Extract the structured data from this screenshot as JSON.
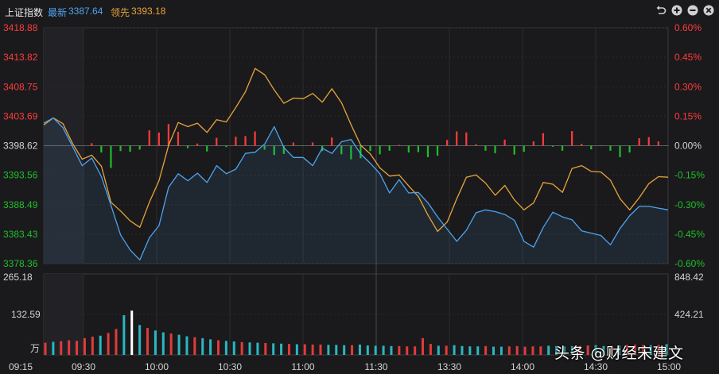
{
  "header": {
    "index_name": "上证指数",
    "latest_label": "最新",
    "latest_value": "3387.64",
    "leading_label": "领先",
    "leading_value": "3393.18"
  },
  "icons": [
    "undo-icon",
    "zoom-in-icon",
    "zoom-out-icon",
    "close-icon"
  ],
  "colors": {
    "up": "#ff3b3b",
    "down": "#1fbf2a",
    "price_line": "#4ea3f0",
    "leading_line": "#e8a33c",
    "axis_text": "#d4d4d4",
    "background": "#1a1a1c",
    "volume_up": "#e23b3b",
    "volume_down": "#2bb7c2"
  },
  "watermark": "头条 @财经宋建文",
  "chart_data": [
    {
      "type": "line",
      "name": "price-panel",
      "y_left_ticks": [
        "3418.88",
        "3413.82",
        "3408.75",
        "3403.69",
        "3398.62",
        "3393.56",
        "3388.49",
        "3383.43",
        "3378.36"
      ],
      "y_right_ticks": [
        "0.60%",
        "0.45%",
        "0.30%",
        "0.15%",
        "0.00%",
        "-0.15%",
        "-0.30%",
        "-0.45%",
        "-0.60%"
      ],
      "ylim": [
        3378.36,
        3418.88
      ],
      "prev_close": 3398.62,
      "x_ticks": [
        "09:15",
        "09:30",
        "10:00",
        "10:30",
        "11:00",
        "11:30",
        "13:30",
        "14:00",
        "14:30",
        "15:00"
      ],
      "series": [
        {
          "name": "最新",
          "values": [
            3402.5,
            3403.4,
            3401.7,
            3398.5,
            3395.2,
            3396.5,
            3393.3,
            3388.4,
            3383.3,
            3380.7,
            3379.0,
            3382.8,
            3384.9,
            3391.5,
            3393.8,
            3392.6,
            3393.9,
            3392.3,
            3395.2,
            3393.8,
            3394.6,
            3397.3,
            3397.5,
            3398.9,
            3401.9,
            3398.3,
            3396.6,
            3396.6,
            3395.2,
            3398.2,
            3397.3,
            3399.3,
            3399.7,
            3397.2,
            3395.6,
            3393.8,
            3390.5,
            3392.8,
            3390.5,
            3390.6,
            3388.8,
            3386.4,
            3384.3,
            3382.2,
            3384.1,
            3387.1,
            3387.6,
            3387.3,
            3386.8,
            3385.8,
            3382.2,
            3381.2,
            3384.6,
            3387.2,
            3386.4,
            3385.9,
            3384.0,
            3383.6,
            3383.2,
            3381.6,
            3384.4,
            3386.6,
            3388.2,
            3388.2,
            3387.9,
            3387.6
          ]
        },
        {
          "name": "领先",
          "values": [
            3402.2,
            3403.4,
            3402.4,
            3399.0,
            3396.3,
            3397.0,
            3395.1,
            3388.9,
            3387.4,
            3385.7,
            3384.6,
            3388.9,
            3392.6,
            3398.7,
            3402.6,
            3401.9,
            3402.5,
            3400.9,
            3403.1,
            3402.7,
            3405.2,
            3407.9,
            3411.9,
            3410.8,
            3408.2,
            3405.9,
            3406.8,
            3406.7,
            3407.6,
            3406.1,
            3408.4,
            3406.0,
            3402.2,
            3398.7,
            3397.2,
            3394.8,
            3393.4,
            3393.6,
            3391.7,
            3389.9,
            3386.7,
            3383.9,
            3385.5,
            3389.5,
            3393.2,
            3393.6,
            3392.2,
            3390.1,
            3391.8,
            3389.3,
            3387.6,
            3388.8,
            3392.3,
            3392.0,
            3390.6,
            3394.7,
            3395.2,
            3394.2,
            3394.1,
            3392.7,
            3389.5,
            3387.6,
            3389.7,
            3392.1,
            3393.3,
            3393.2
          ]
        }
      ]
    },
    {
      "type": "bar",
      "name": "volume-panel",
      "y_left_ticks": [
        "265.18",
        "132.59",
        "万"
      ],
      "y_right_ticks": [
        "848.42",
        "424.21"
      ],
      "ylim": [
        0,
        265.18
      ],
      "values": [
        40,
        43,
        45,
        48,
        46,
        55,
        60,
        63,
        72,
        85,
        130,
        145,
        98,
        88,
        80,
        74,
        70,
        66,
        61,
        58,
        55,
        51,
        48,
        46,
        44,
        42,
        41,
        40,
        39,
        38,
        37,
        36,
        35,
        35,
        34,
        34,
        33,
        33,
        32,
        32,
        34,
        31,
        30,
        30,
        29,
        29,
        28,
        28,
        55,
        36,
        30,
        30,
        32,
        29,
        28,
        28,
        29,
        27,
        27,
        28,
        29,
        27,
        28,
        28,
        30,
        29,
        28,
        29,
        30,
        31,
        32,
        29,
        30,
        31,
        33,
        34,
        33,
        32,
        33,
        35
      ]
    }
  ]
}
